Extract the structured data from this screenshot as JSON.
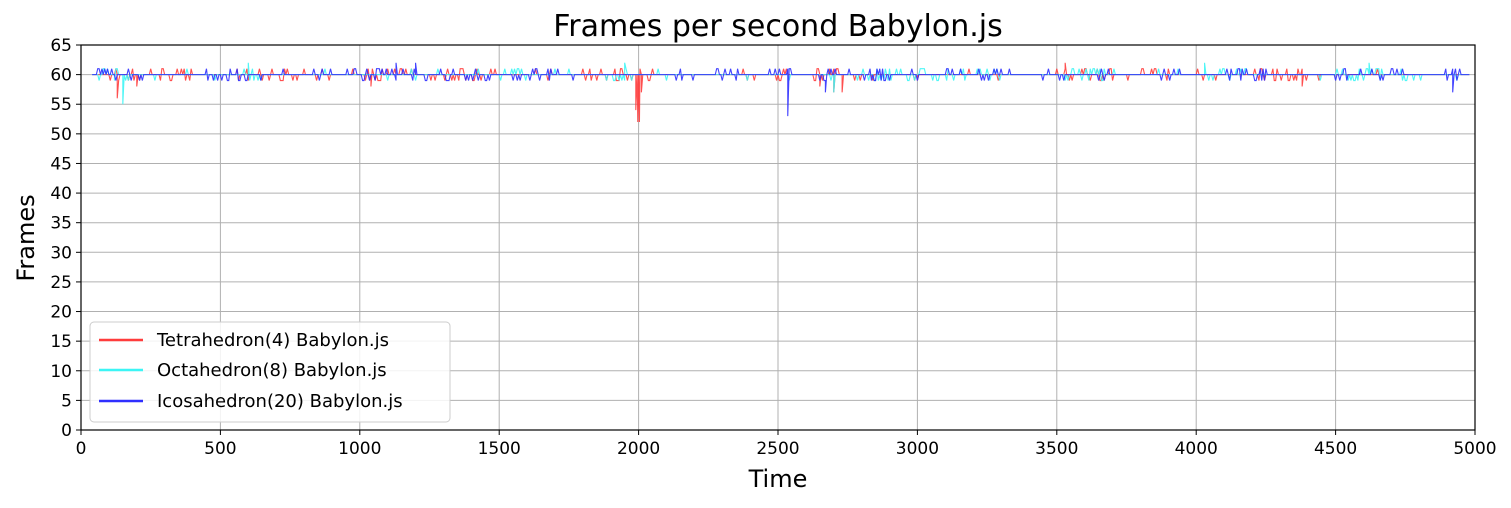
{
  "chart_data": {
    "type": "line",
    "title": "Frames per second Babylon.js",
    "xlabel": "Time",
    "ylabel": "Frames",
    "xlim": [
      0,
      5000
    ],
    "ylim": [
      0,
      65
    ],
    "xticks": [
      0,
      500,
      1000,
      1500,
      2000,
      2500,
      3000,
      3500,
      4000,
      4500,
      5000
    ],
    "yticks": [
      0,
      5,
      10,
      15,
      20,
      25,
      30,
      35,
      40,
      45,
      50,
      55,
      60,
      65
    ],
    "grid": true,
    "legend_position": "lower-left",
    "baseline_fps": 60,
    "series": [
      {
        "name": "Tetrahedron(4) Babylon.js",
        "color": "#ff3c3c",
        "baseline": 60,
        "range": [
          40,
          4980
        ],
        "dips": [
          [
            130,
            56
          ],
          [
            200,
            58
          ],
          [
            1040,
            58
          ],
          [
            1990,
            54
          ],
          [
            1997,
            52
          ],
          [
            2003,
            52
          ],
          [
            2010,
            57
          ],
          [
            2650,
            58
          ],
          [
            2700,
            57
          ],
          [
            2730,
            57
          ],
          [
            3000,
            59
          ],
          [
            3530,
            62
          ],
          [
            4380,
            58
          ]
        ],
        "dense": [
          [
            100,
            400
          ],
          [
            560,
            900
          ],
          [
            1000,
            1150
          ],
          [
            1300,
            1500
          ],
          [
            1800,
            2050
          ],
          [
            2500,
            2550
          ],
          [
            2620,
            2730
          ],
          [
            3500,
            3700
          ],
          [
            3800,
            3900
          ],
          [
            4200,
            4400
          ]
        ]
      },
      {
        "name": "Octahedron(8) Babylon.js",
        "color": "#3cf5f5",
        "baseline": 60,
        "range": [
          40,
          4980
        ],
        "dips": [
          [
            150,
            55
          ],
          [
            120,
            59
          ],
          [
            600,
            62
          ],
          [
            1950,
            62
          ],
          [
            2700,
            57
          ],
          [
            2880,
            59
          ],
          [
            4030,
            62
          ],
          [
            4620,
            62
          ]
        ],
        "dense": [
          [
            50,
            200
          ],
          [
            580,
            650
          ],
          [
            1500,
            1600
          ],
          [
            1900,
            1960
          ],
          [
            2800,
            3300
          ],
          [
            3500,
            3700
          ],
          [
            4000,
            4200
          ],
          [
            4500,
            4800
          ]
        ]
      },
      {
        "name": "Icosahedron(20) Babylon.js",
        "color": "#2f2fff",
        "baseline": 60,
        "range": [
          40,
          4980
        ],
        "dips": [
          [
            2535,
            53
          ],
          [
            2670,
            57
          ],
          [
            4920,
            57
          ],
          [
            1130,
            62
          ],
          [
            1200,
            62
          ]
        ],
        "dense": [
          [
            40,
            120
          ],
          [
            180,
            220
          ],
          [
            450,
            650
          ],
          [
            950,
            1200
          ],
          [
            1250,
            1500
          ],
          [
            1550,
            1700
          ],
          [
            2100,
            2200
          ],
          [
            2280,
            2350
          ],
          [
            2450,
            2550
          ],
          [
            2650,
            2700
          ],
          [
            2800,
            2900
          ],
          [
            3100,
            3350
          ],
          [
            3450,
            3500
          ],
          [
            3650,
            3700
          ],
          [
            3880,
            3950
          ],
          [
            4150,
            4250
          ],
          [
            4500,
            4560
          ],
          [
            4650,
            4750
          ],
          [
            4900,
            4980
          ]
        ]
      }
    ]
  }
}
